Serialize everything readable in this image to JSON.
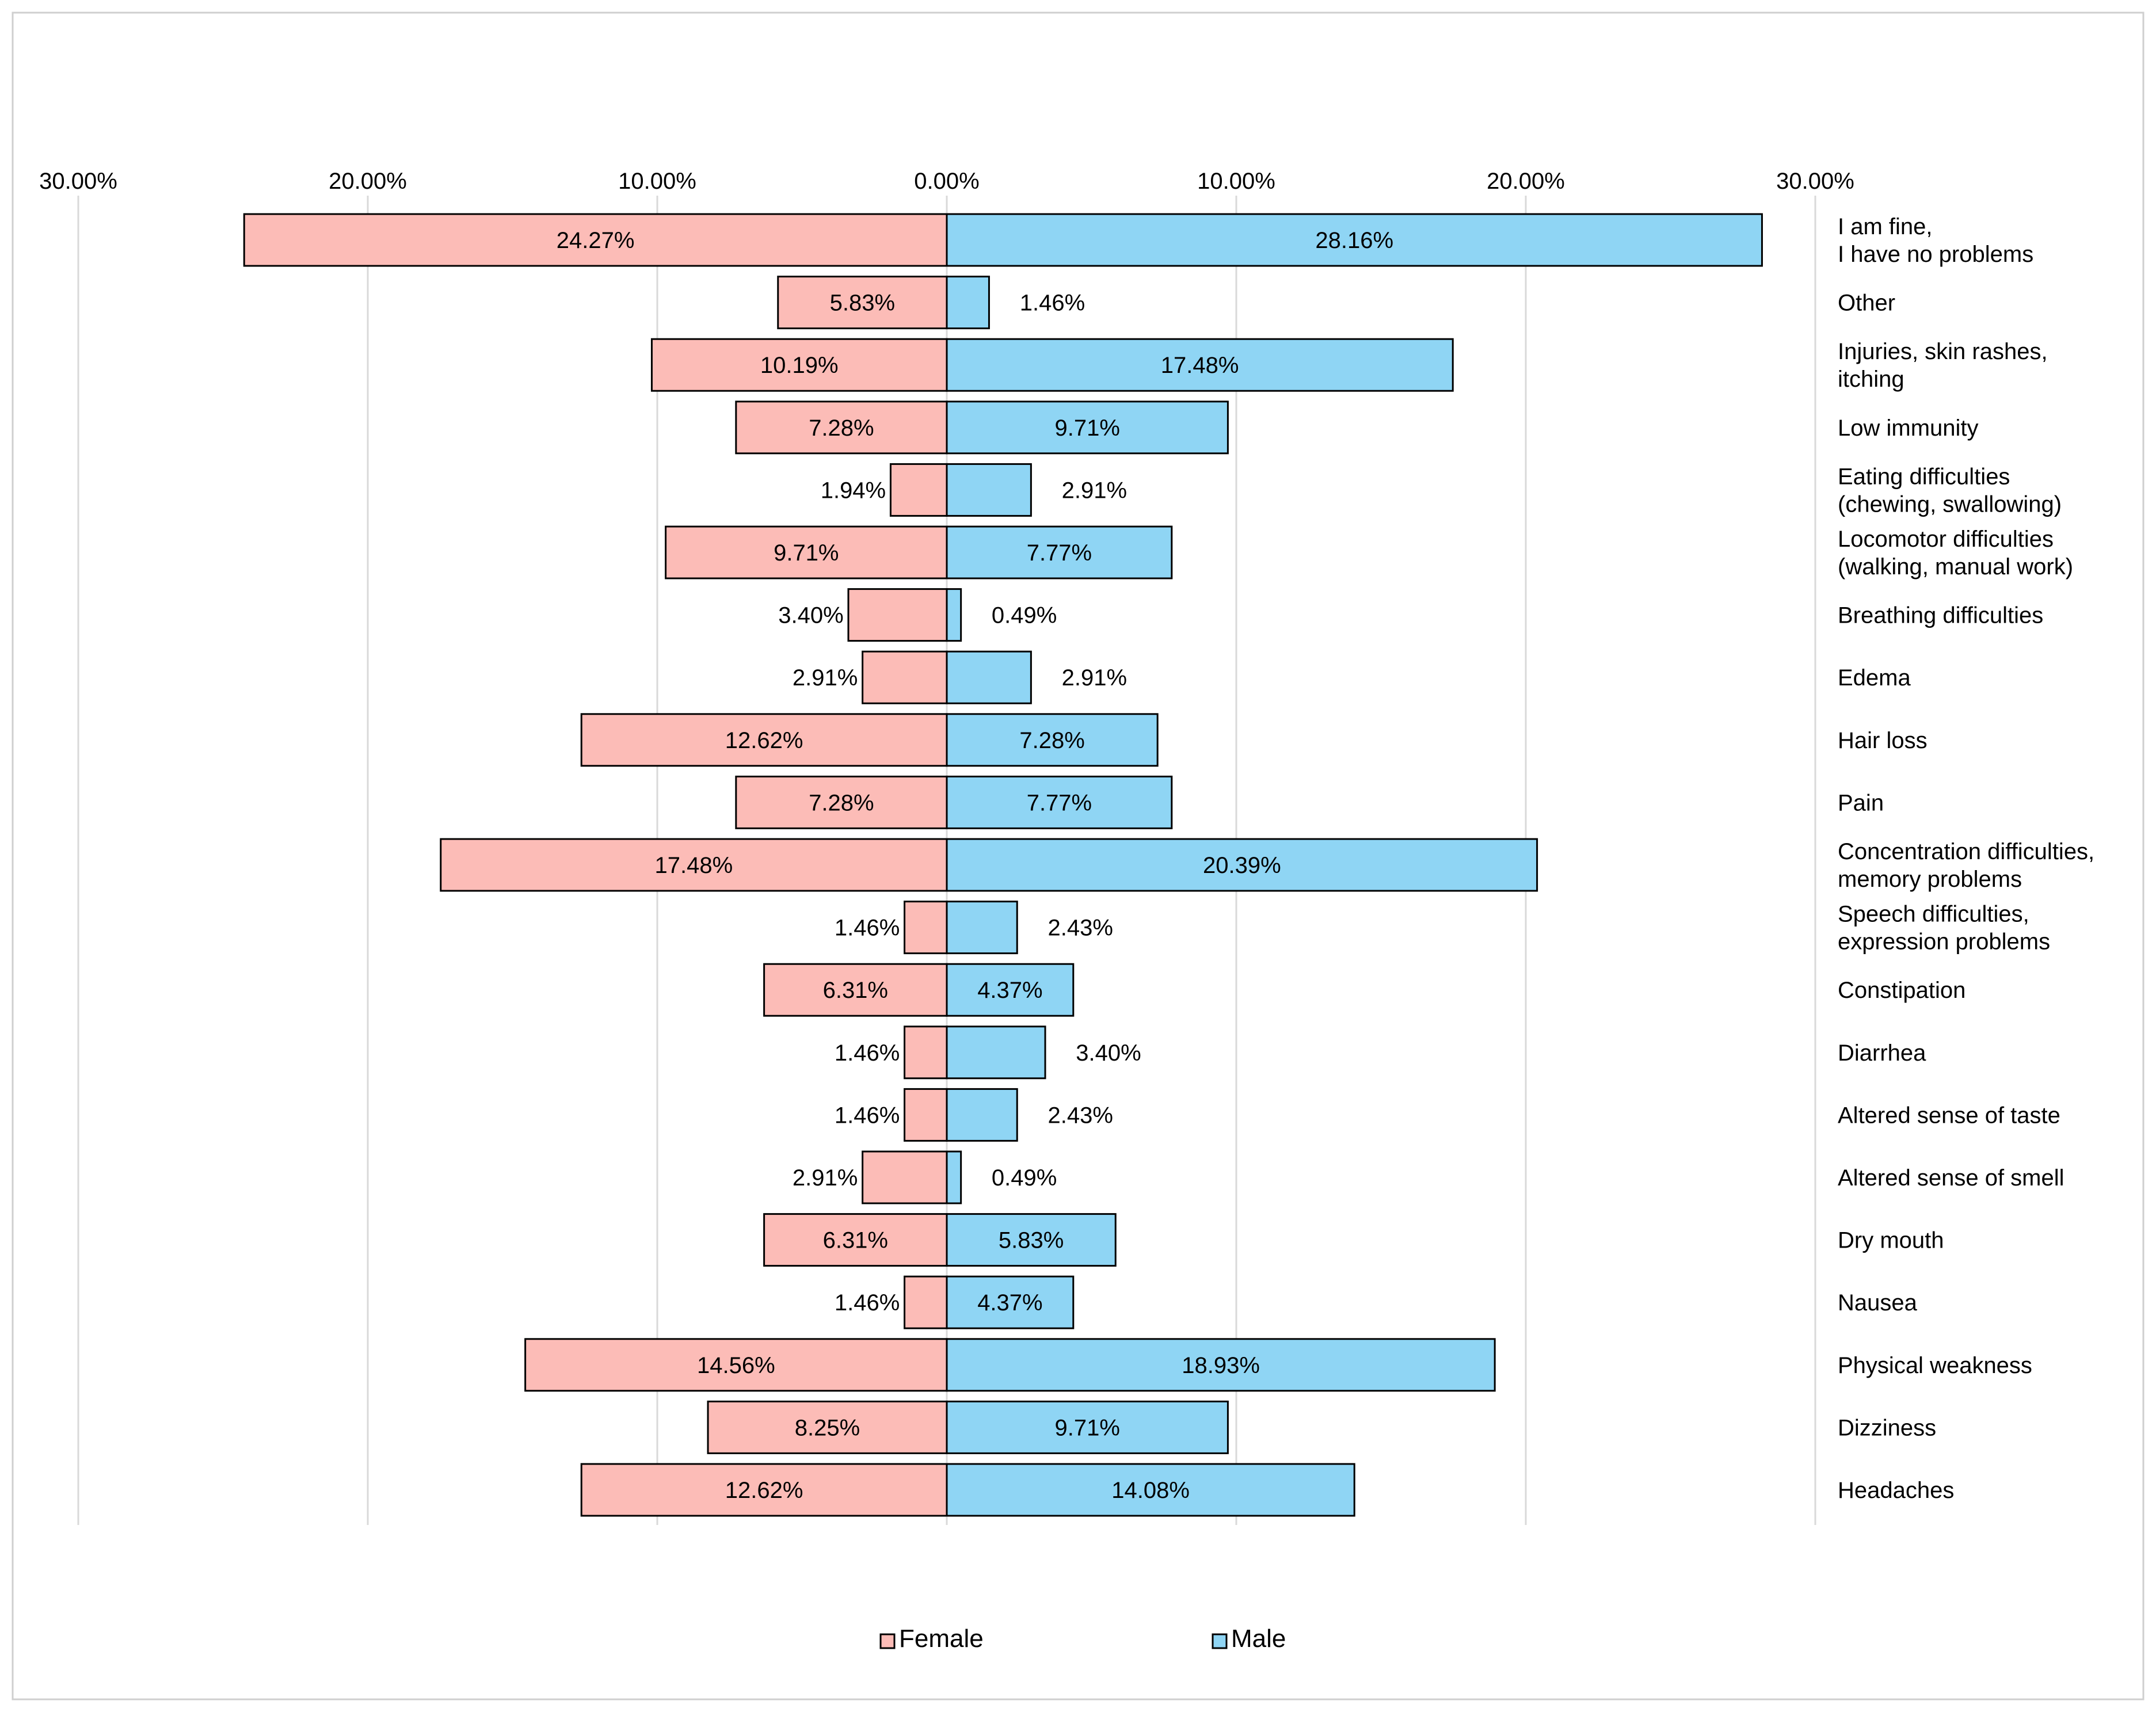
{
  "chart_data": {
    "type": "bar",
    "orientation": "horizontal-diverging",
    "title": "",
    "xlabel": "",
    "ylabel": "",
    "xlim": [
      -30,
      30
    ],
    "grid": true,
    "legend_position": "bottom",
    "x_tick_labels": [
      "30.00%",
      "20.00%",
      "10.00%",
      "0.00%",
      "10.00%",
      "20.00%",
      "30.00%"
    ],
    "x_tick_values": [
      -30,
      -20,
      -10,
      0,
      10,
      20,
      30
    ],
    "categories": [
      [
        "I am fine,",
        "I have no problems"
      ],
      [
        "Other"
      ],
      [
        "Injuries, skin rashes,",
        "itching"
      ],
      [
        "Low immunity"
      ],
      [
        "Eating difficulties",
        "(chewing, swallowing)"
      ],
      [
        "Locomotor difficulties",
        "(walking, manual work)"
      ],
      [
        "Breathing difficulties"
      ],
      [
        "Edema"
      ],
      [
        "Hair loss"
      ],
      [
        "Pain"
      ],
      [
        "Concentration difficulties,",
        "memory problems"
      ],
      [
        "Speech difficulties,",
        "expression problems"
      ],
      [
        "Constipation"
      ],
      [
        "Diarrhea"
      ],
      [
        "Altered sense of taste"
      ],
      [
        "Altered sense of smell"
      ],
      [
        "Dry mouth"
      ],
      [
        "Nausea"
      ],
      [
        "Physical weakness"
      ],
      [
        "Dizziness"
      ],
      [
        "Headaches"
      ]
    ],
    "series": [
      {
        "name": "Female",
        "color": "#fcbcb7",
        "values": [
          24.27,
          5.83,
          10.19,
          7.28,
          1.94,
          9.71,
          3.4,
          2.91,
          12.62,
          7.28,
          17.48,
          1.46,
          6.31,
          1.46,
          1.46,
          2.91,
          6.31,
          1.46,
          14.56,
          8.25,
          12.62
        ],
        "labels": [
          "24.27%",
          "5.83%",
          "10.19%",
          "7.28%",
          "1.94%",
          "9.71%",
          "3.40%",
          "2.91%",
          "12.62%",
          "7.28%",
          "17.48%",
          "1.46%",
          "6.31%",
          "1.46%",
          "1.46%",
          "2.91%",
          "6.31%",
          "1.46%",
          "14.56%",
          "8.25%",
          "12.62%"
        ]
      },
      {
        "name": "Male",
        "color": "#8fd5f4",
        "values": [
          28.16,
          1.46,
          17.48,
          9.71,
          2.91,
          7.77,
          0.49,
          2.91,
          7.28,
          7.77,
          20.39,
          2.43,
          4.37,
          3.4,
          2.43,
          0.49,
          5.83,
          4.37,
          18.93,
          9.71,
          14.08
        ],
        "labels": [
          "28.16%",
          "1.46%",
          "17.48%",
          "9.71%",
          "2.91%",
          "7.77%",
          "0.49%",
          "2.91%",
          "7.28%",
          "7.77%",
          "20.39%",
          "2.43%",
          "4.37%",
          "3.40%",
          "2.43%",
          "0.49%",
          "5.83%",
          "4.37%",
          "18.93%",
          "9.71%",
          "14.08%"
        ]
      }
    ]
  }
}
